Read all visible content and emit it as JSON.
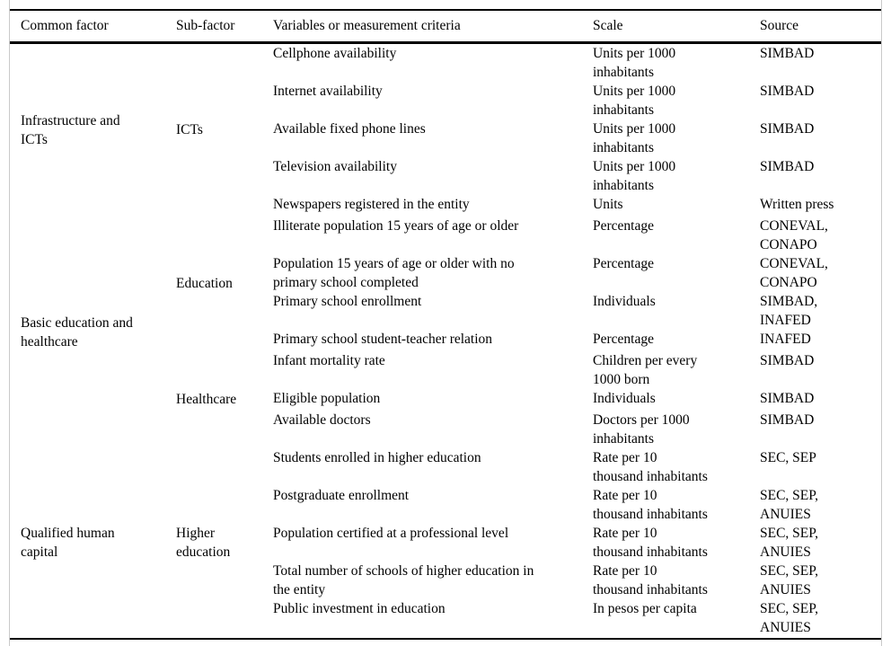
{
  "table": {
    "headers": [
      "Common factor",
      "Sub-factor",
      "Variables or measurement criteria",
      "Scale",
      "Source"
    ],
    "common_factors": [
      {
        "label": "Infrastructure and ICTs",
        "rowspan": 5
      },
      {
        "label": "Basic education and healthcare",
        "rowspan": 7
      },
      {
        "label": "Qualified human capital",
        "rowspan": 5
      }
    ],
    "sub_factors": [
      {
        "label": "ICTs",
        "rowspan": 5
      },
      {
        "label": "Education",
        "rowspan": 4
      },
      {
        "label": "Healthcare",
        "rowspan": 3
      },
      {
        "label": "Higher education",
        "rowspan": 5
      }
    ],
    "rows": [
      {
        "variable": "Cellphone availability",
        "scale": "Units per 1000 inhabitants",
        "source": "SIMBAD"
      },
      {
        "variable": "Internet availability",
        "scale": "Units per 1000 inhabitants",
        "source": "SIMBAD"
      },
      {
        "variable": "Available fixed phone lines",
        "scale": "Units per 1000 inhabitants",
        "source": "SIMBAD"
      },
      {
        "variable": "Television availability",
        "scale": "Units per 1000 inhabitants",
        "source": "SIMBAD"
      },
      {
        "variable": "Newspapers registered in the entity",
        "scale": "Units",
        "source": "Written press"
      },
      {
        "variable": "Illiterate population 15 years of age or older",
        "scale": "Percentage",
        "source": "CONEVAL, CONAPO"
      },
      {
        "variable": "Population 15 years of age or older with no primary school completed",
        "scale": "Percentage",
        "source": "CONEVAL, CONAPO"
      },
      {
        "variable": "Primary school enrollment",
        "scale": "Individuals",
        "source": "SIMBAD, INAFED"
      },
      {
        "variable": "Primary school student-teacher relation",
        "scale": "Percentage",
        "source": "INAFED"
      },
      {
        "variable": "Infant mortality rate",
        "scale": "Children per every 1000 born",
        "source": "SIMBAD"
      },
      {
        "variable": "Eligible population",
        "scale": "Individuals",
        "source": "SIMBAD"
      },
      {
        "variable": "Available doctors",
        "scale": "Doctors per 1000 inhabitants",
        "source": "SIMBAD"
      },
      {
        "variable": "Students enrolled in higher education",
        "scale": "Rate per 10 thousand inhabitants",
        "source": "SEC, SEP"
      },
      {
        "variable": "Postgraduate enrollment",
        "scale": "Rate per 10 thousand inhabitants",
        "source": "SEC, SEP, ANUIES"
      },
      {
        "variable": "Population certified at a professional level",
        "scale": "Rate per 10 thousand inhabitants",
        "source": "SEC, SEP, ANUIES"
      },
      {
        "variable": "Total number of schools of higher education in the entity",
        "scale": "Rate per 10 thousand inhabitants",
        "source": "SEC, SEP, ANUIES"
      },
      {
        "variable": "Public investment in education",
        "scale": "In pesos per capita",
        "source": "SEC, SEP, ANUIES"
      }
    ]
  },
  "colors": {
    "text": "#000000",
    "rule": "#000000",
    "side_border": "#c9c9c9",
    "background": "#ffffff"
  }
}
